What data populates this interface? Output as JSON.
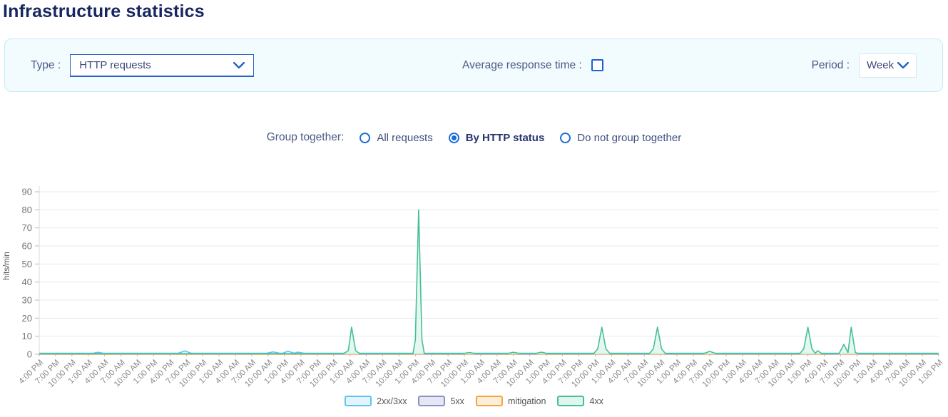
{
  "header": {
    "title": "Infrastructure statistics"
  },
  "filters": {
    "type_label": "Type :",
    "type_value": "HTTP requests",
    "avg_response_label": "Average response time :",
    "avg_response_checked": false,
    "period_label": "Period :",
    "period_value": "Week"
  },
  "grouping": {
    "label": "Group together:",
    "options": [
      {
        "label": "All requests",
        "selected": false
      },
      {
        "label": "By HTTP status",
        "selected": true
      },
      {
        "label": "Do not group together",
        "selected": false
      }
    ]
  },
  "chart_data": {
    "type": "line",
    "title": "",
    "xlabel": "",
    "ylabel": "hits/min",
    "ylim": [
      0,
      90
    ],
    "yticks": [
      0,
      10,
      20,
      30,
      40,
      50,
      60,
      70,
      80,
      90
    ],
    "grid": "horizontal",
    "legend_position": "bottom",
    "categories": [
      "4:00 PM",
      "7:00 PM",
      "10:00 PM",
      "1:00 AM",
      "4:00 AM",
      "7:00 AM",
      "10:00 AM",
      "1:00 PM",
      "4:00 PM",
      "7:00 PM",
      "10:00 PM",
      "1:00 AM",
      "4:00 AM",
      "7:00 AM",
      "10:00 AM",
      "1:00 PM",
      "4:00 PM",
      "7:00 PM",
      "10:00 PM",
      "1:00 AM",
      "4:00 AM",
      "7:00 AM",
      "10:00 AM",
      "1:00 PM",
      "4:00 PM",
      "7:00 PM",
      "10:00 PM",
      "1:00 AM",
      "4:00 AM",
      "7:00 AM",
      "10:00 AM",
      "1:00 PM",
      "4:00 PM",
      "7:00 PM",
      "10:00 PM",
      "1:00 AM",
      "4:00 AM",
      "7:00 AM",
      "10:00 AM",
      "1:00 PM",
      "4:00 PM",
      "7:00 PM",
      "10:00 PM",
      "1:00 AM",
      "4:00 AM",
      "7:00 AM",
      "10:00 AM",
      "1:00 PM",
      "4:00 PM",
      "7:00 PM",
      "10:00 PM",
      "1:00 AM",
      "4:00 AM",
      "7:00 AM",
      "10:00 AM",
      "1:00 PM"
    ],
    "series": [
      {
        "name": "2xx/3xx",
        "color": "#5fc3f2",
        "fill": "#e3f4fd",
        "points": [
          [
            0,
            0.6
          ],
          [
            3.3,
            0.6
          ],
          [
            3.6,
            1.1
          ],
          [
            3.9,
            0.6
          ],
          [
            8.5,
            0.6
          ],
          [
            8.9,
            1.8
          ],
          [
            9.3,
            0.6
          ],
          [
            13.9,
            0.6
          ],
          [
            14.3,
            1.3
          ],
          [
            14.7,
            0.6
          ],
          [
            14.9,
            0.6
          ],
          [
            15.2,
            1.7
          ],
          [
            15.6,
            0.6
          ],
          [
            15.8,
            1.2
          ],
          [
            16.2,
            0.6
          ],
          [
            55,
            0.6
          ]
        ]
      },
      {
        "name": "5xx",
        "color": "#8f90c5",
        "fill": "#e6e6f4",
        "points": [
          [
            0,
            0.1
          ],
          [
            55,
            0.1
          ]
        ]
      },
      {
        "name": "mitigation",
        "color": "#f3a63c",
        "fill": "#fdeedb",
        "points": [
          [
            0,
            0.1
          ],
          [
            55,
            0.1
          ]
        ]
      },
      {
        "name": "4xx",
        "color": "#47c096",
        "fill": "#e1f6ec",
        "points": [
          [
            0,
            0.3
          ],
          [
            18.6,
            0.3
          ],
          [
            18.9,
            2
          ],
          [
            19.1,
            15
          ],
          [
            19.35,
            2
          ],
          [
            19.6,
            0.3
          ],
          [
            22.85,
            0.3
          ],
          [
            23.0,
            8
          ],
          [
            23.2,
            80
          ],
          [
            23.4,
            8
          ],
          [
            23.55,
            0.3
          ],
          [
            25.9,
            0.3
          ],
          [
            26.3,
            1
          ],
          [
            26.7,
            0.3
          ],
          [
            28.6,
            0.3
          ],
          [
            29.0,
            1.1
          ],
          [
            29.4,
            0.3
          ],
          [
            30.3,
            0.3
          ],
          [
            30.7,
            1.2
          ],
          [
            31.1,
            0.3
          ],
          [
            33.9,
            0.3
          ],
          [
            34.15,
            3
          ],
          [
            34.4,
            15
          ],
          [
            34.65,
            3
          ],
          [
            34.9,
            0.3
          ],
          [
            37.3,
            0.3
          ],
          [
            37.55,
            3
          ],
          [
            37.8,
            15
          ],
          [
            38.05,
            3
          ],
          [
            38.3,
            0.3
          ],
          [
            40.6,
            0.3
          ],
          [
            41.0,
            1.6
          ],
          [
            41.4,
            0.3
          ],
          [
            46.5,
            0.3
          ],
          [
            46.75,
            3
          ],
          [
            47.0,
            15
          ],
          [
            47.25,
            3
          ],
          [
            47.45,
            0.5
          ],
          [
            47.6,
            2
          ],
          [
            47.85,
            0.3
          ],
          [
            48.9,
            0.3
          ],
          [
            49.2,
            5.5
          ],
          [
            49.45,
            1
          ],
          [
            49.65,
            15
          ],
          [
            49.9,
            1
          ],
          [
            50.1,
            0.3
          ],
          [
            55,
            0.3
          ]
        ]
      }
    ]
  }
}
